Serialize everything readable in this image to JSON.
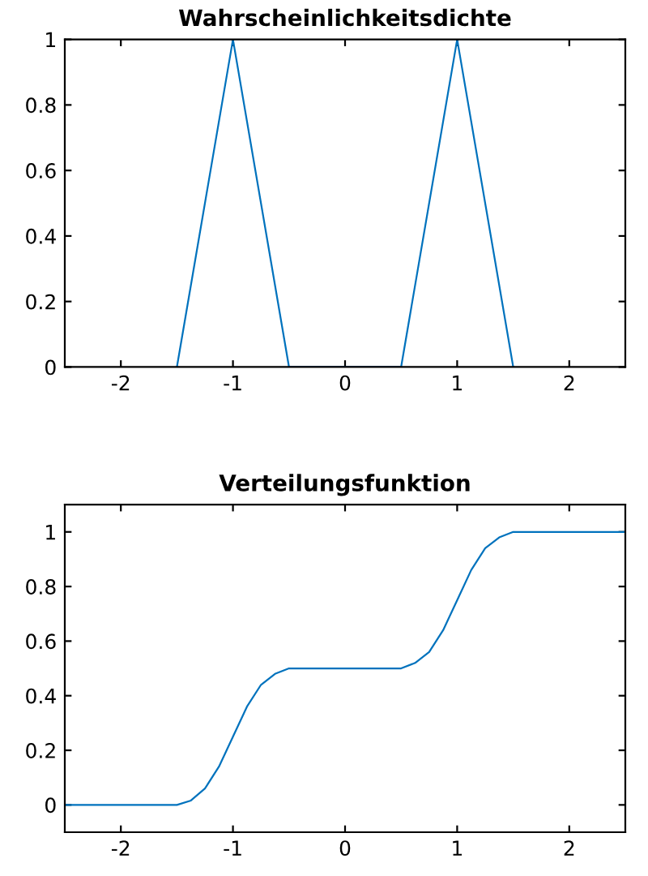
{
  "chart_data": [
    {
      "type": "line",
      "title": "Wahrscheinlichkeitsdichte",
      "x": [
        -1.5,
        -1,
        -0.5,
        0.5,
        1,
        1.5
      ],
      "series": [
        {
          "color": "#0072bd",
          "values": [
            0,
            1,
            0,
            0,
            1,
            0
          ]
        }
      ],
      "xlim": [
        -2.5,
        2.5
      ],
      "xticks": [
        -2,
        -1,
        0,
        1,
        2
      ],
      "ylim": [
        0,
        1
      ],
      "yticks": [
        0,
        0.2,
        0.4,
        0.6,
        0.8,
        1
      ],
      "grid": false,
      "legend": false
    },
    {
      "type": "line",
      "title": "Verteilungsfunktion",
      "x": [
        -2.5,
        -1.5,
        -1.375,
        -1.25,
        -1.125,
        -1,
        -0.875,
        -0.75,
        -0.625,
        -0.5,
        0.5,
        0.625,
        0.75,
        0.875,
        1,
        1.125,
        1.25,
        1.375,
        1.5,
        2.5
      ],
      "series": [
        {
          "color": "#0072bd",
          "values": [
            0,
            0,
            0.016,
            0.06,
            0.14,
            0.25,
            0.36,
            0.44,
            0.48,
            0.5,
            0.5,
            0.52,
            0.56,
            0.64,
            0.75,
            0.86,
            0.94,
            0.98,
            1,
            1
          ]
        }
      ],
      "xlim": [
        -2.5,
        2.5
      ],
      "xticks": [
        -2,
        -1,
        0,
        1,
        2
      ],
      "ylim": [
        -0.1,
        1.1
      ],
      "yticks": [
        0,
        0.2,
        0.4,
        0.6,
        0.8,
        1
      ],
      "grid": false,
      "legend": false
    }
  ]
}
